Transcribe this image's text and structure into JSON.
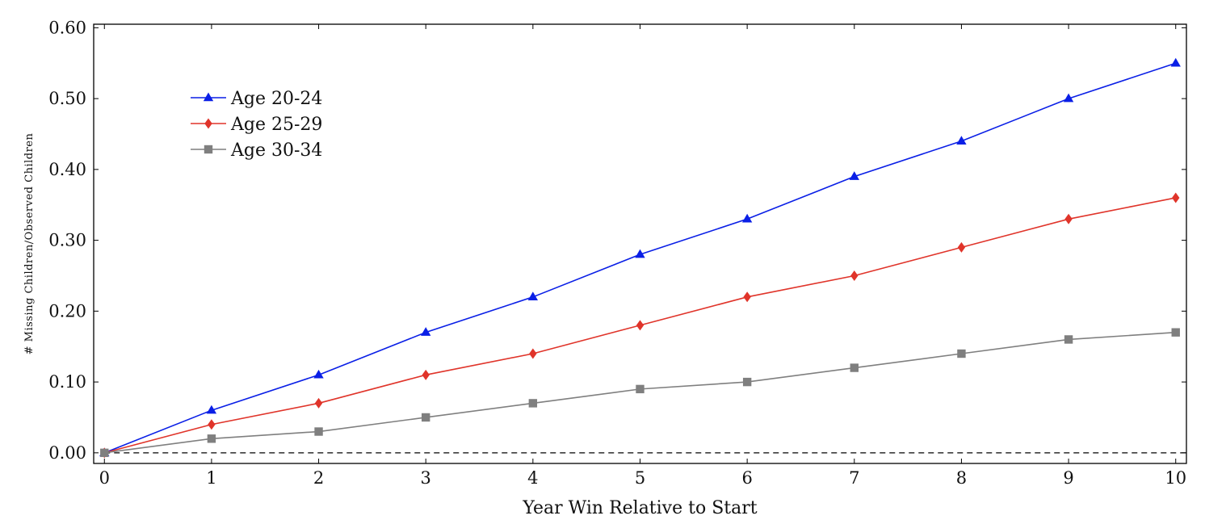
{
  "chart_data": {
    "type": "line",
    "xlabel": "Year Win Relative to Start",
    "ylabel": "# Missing Children/Observed Children",
    "x": [
      0,
      1,
      2,
      3,
      4,
      5,
      6,
      7,
      8,
      9,
      10
    ],
    "xlim": [
      -0.1,
      10.1
    ],
    "ylim": [
      -0.015,
      0.605
    ],
    "xticks": [
      0,
      1,
      2,
      3,
      4,
      5,
      6,
      7,
      8,
      9,
      10
    ],
    "yticks": [
      0.0,
      0.1,
      0.2,
      0.3,
      0.4,
      0.5,
      0.6
    ],
    "ytick_labels": [
      "0.00",
      "0.10",
      "0.20",
      "0.30",
      "0.40",
      "0.50",
      "0.60"
    ],
    "grid": false,
    "legend_position": "top-left",
    "reference_line": {
      "y": 0,
      "style": "dashed"
    },
    "series": [
      {
        "name": "Age 20-24",
        "marker": "triangle",
        "color": "#0a1fe6",
        "values": [
          0.0,
          0.06,
          0.11,
          0.17,
          0.22,
          0.28,
          0.33,
          0.39,
          0.44,
          0.5,
          0.55
        ]
      },
      {
        "name": "Age 25-29",
        "marker": "diamond",
        "color": "#e0342a",
        "values": [
          0.0,
          0.04,
          0.07,
          0.11,
          0.14,
          0.18,
          0.22,
          0.25,
          0.29,
          0.33,
          0.36
        ]
      },
      {
        "name": "Age 30-34",
        "marker": "square",
        "color": "#7f7f7f",
        "values": [
          0.0,
          0.02,
          0.03,
          0.05,
          0.07,
          0.09,
          0.1,
          0.12,
          0.14,
          0.16,
          0.17
        ]
      }
    ]
  }
}
